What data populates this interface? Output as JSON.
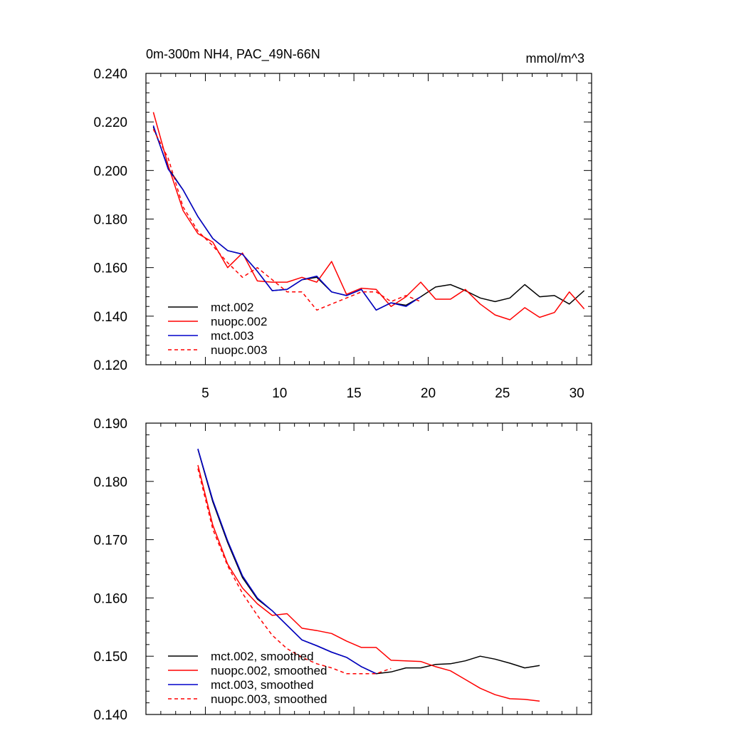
{
  "chart_data": [
    {
      "type": "line",
      "title": "0m-300m NH4, PAC_49N-66N",
      "units": "mmol/m^3",
      "xlim": [
        1,
        31
      ],
      "ylim": [
        0.12,
        0.24
      ],
      "xticks": [
        5,
        10,
        15,
        20,
        25,
        30
      ],
      "xtick_labels": [
        "5",
        "10",
        "15",
        "20",
        "25",
        "30"
      ],
      "yticks": [
        0.12,
        0.14,
        0.16,
        0.18,
        0.2,
        0.22,
        0.24
      ],
      "ytick_labels": [
        "0.120",
        "0.140",
        "0.160",
        "0.180",
        "0.200",
        "0.220",
        "0.240"
      ],
      "legend": "bottom-left",
      "series": [
        {
          "name": "mct.002",
          "color": "#000000",
          "dash": false,
          "x": [
            1.5,
            2.5,
            3.5,
            4.5,
            5.5,
            6.5,
            7.5,
            8.5,
            9.5,
            10.5,
            11.5,
            12.5,
            13.5,
            14.5,
            15.5,
            16.5,
            17.5,
            18.5,
            19.5,
            20.5,
            21.5,
            22.5,
            23.5,
            24.5,
            25.5,
            26.5,
            27.5,
            28.5,
            29.5,
            30.5
          ],
          "y": [
            0.218,
            0.201,
            0.192,
            0.181,
            0.172,
            0.167,
            0.1655,
            0.1585,
            0.1505,
            0.151,
            0.155,
            0.156,
            0.15,
            0.1485,
            0.151,
            0.1425,
            0.1455,
            0.1445,
            0.148,
            0.152,
            0.153,
            0.1505,
            0.1475,
            0.146,
            0.1475,
            0.153,
            0.148,
            0.1485,
            0.145,
            0.1505
          ]
        },
        {
          "name": "nuopc.002",
          "color": "#ff0000",
          "dash": false,
          "x": [
            1.5,
            2.5,
            3.5,
            4.5,
            5.5,
            6.5,
            7.5,
            8.5,
            9.5,
            10.5,
            11.5,
            12.5,
            13.5,
            14.5,
            15.5,
            16.5,
            17.5,
            18.5,
            19.5,
            20.5,
            21.5,
            22.5,
            23.5,
            24.5,
            25.5,
            26.5,
            27.5,
            28.5,
            29.5,
            30.5
          ],
          "y": [
            0.224,
            0.202,
            0.1835,
            0.174,
            0.1705,
            0.16,
            0.166,
            0.1545,
            0.154,
            0.154,
            0.156,
            0.154,
            0.1625,
            0.149,
            0.1515,
            0.151,
            0.144,
            0.148,
            0.154,
            0.147,
            0.147,
            0.151,
            0.145,
            0.1405,
            0.1385,
            0.1435,
            0.1395,
            0.1415,
            0.15,
            0.143
          ]
        },
        {
          "name": "mct.003",
          "color": "#0000cc",
          "dash": false,
          "x": [
            1.5,
            2.5,
            3.5,
            4.5,
            5.5,
            6.5,
            7.5,
            8.5,
            9.5,
            10.5,
            11.5,
            12.5,
            13.5,
            14.5,
            15.5,
            16.5,
            17.5,
            18.5,
            19.5
          ],
          "y": [
            0.2185,
            0.2005,
            0.192,
            0.181,
            0.172,
            0.167,
            0.1655,
            0.1585,
            0.1505,
            0.151,
            0.155,
            0.1565,
            0.15,
            0.1485,
            0.151,
            0.1425,
            0.1455,
            0.144,
            0.148
          ]
        },
        {
          "name": "nuopc.003",
          "color": "#ff0000",
          "dash": true,
          "x": [
            1.5,
            2.5,
            3.5,
            4.5,
            5.5,
            6.5,
            7.5,
            8.5,
            9.5,
            10.5,
            11.5,
            12.5,
            13.5,
            14.5,
            15.5,
            16.5,
            17.5,
            18.5,
            19.5
          ],
          "y": [
            0.217,
            0.205,
            0.185,
            0.175,
            0.169,
            0.162,
            0.156,
            0.16,
            0.155,
            0.15,
            0.15,
            0.1425,
            0.145,
            0.1475,
            0.15,
            0.15,
            0.146,
            0.1485,
            0.146
          ]
        }
      ]
    },
    {
      "type": "line",
      "xlim": [
        1,
        31
      ],
      "ylim": [
        0.14,
        0.19
      ],
      "xticks": [
        5,
        10,
        15,
        20,
        25,
        30
      ],
      "yticks": [
        0.14,
        0.15,
        0.16,
        0.17,
        0.18,
        0.19
      ],
      "ytick_labels": [
        "0.140",
        "0.150",
        "0.160",
        "0.170",
        "0.180",
        "0.190"
      ],
      "legend": "bottom-left",
      "series": [
        {
          "name": "mct.002, smoothed",
          "color": "#000000",
          "dash": false,
          "x": [
            4.5,
            5.5,
            6.5,
            7.5,
            8.5,
            9.5,
            10.5,
            11.5,
            12.5,
            13.5,
            14.5,
            15.5,
            16.5,
            17.5,
            18.5,
            19.5,
            20.5,
            21.5,
            22.5,
            23.5,
            24.5,
            25.5,
            26.5,
            27.5
          ],
          "y": [
            0.1855,
            0.1765,
            0.1695,
            0.1635,
            0.1598,
            0.1578,
            0.1553,
            0.1528,
            0.1518,
            0.1507,
            0.1498,
            0.1482,
            0.147,
            0.1473,
            0.148,
            0.148,
            0.1486,
            0.1487,
            0.1492,
            0.15,
            0.1495,
            0.1488,
            0.148,
            0.1484
          ]
        },
        {
          "name": "nuopc.002, smoothed",
          "color": "#ff0000",
          "dash": false,
          "x": [
            4.5,
            5.5,
            6.5,
            7.5,
            8.5,
            9.5,
            10.5,
            11.5,
            12.5,
            13.5,
            14.5,
            15.5,
            16.5,
            17.5,
            18.5,
            19.5,
            20.5,
            21.5,
            22.5,
            23.5,
            24.5,
            25.5,
            26.5,
            27.5
          ],
          "y": [
            0.1828,
            0.1725,
            0.1658,
            0.1617,
            0.159,
            0.157,
            0.1573,
            0.1548,
            0.1544,
            0.1539,
            0.1526,
            0.1515,
            0.1515,
            0.1493,
            0.1492,
            0.1491,
            0.1482,
            0.1475,
            0.146,
            0.1445,
            0.1434,
            0.1427,
            0.1426,
            0.1423
          ]
        },
        {
          "name": "mct.003, smoothed",
          "color": "#0000cc",
          "dash": false,
          "x": [
            4.5,
            5.5,
            6.5,
            7.5,
            8.5,
            9.5,
            10.5,
            11.5,
            12.5,
            13.5,
            14.5,
            15.5,
            16.5
          ],
          "y": [
            0.1856,
            0.1768,
            0.1698,
            0.1638,
            0.16,
            0.1578,
            0.1553,
            0.1528,
            0.1518,
            0.1507,
            0.1498,
            0.1482,
            0.147
          ]
        },
        {
          "name": "nuopc.003, smoothed",
          "color": "#ff0000",
          "dash": true,
          "x": [
            4.5,
            5.5,
            6.5,
            7.5,
            8.5,
            9.5,
            10.5,
            11.5,
            12.5,
            13.5,
            14.5,
            15.5,
            16.5,
            17.5
          ],
          "y": [
            0.1822,
            0.1718,
            0.1655,
            0.1608,
            0.157,
            0.1536,
            0.1513,
            0.1498,
            0.1487,
            0.148,
            0.147,
            0.147,
            0.147,
            0.1479
          ]
        }
      ]
    }
  ]
}
